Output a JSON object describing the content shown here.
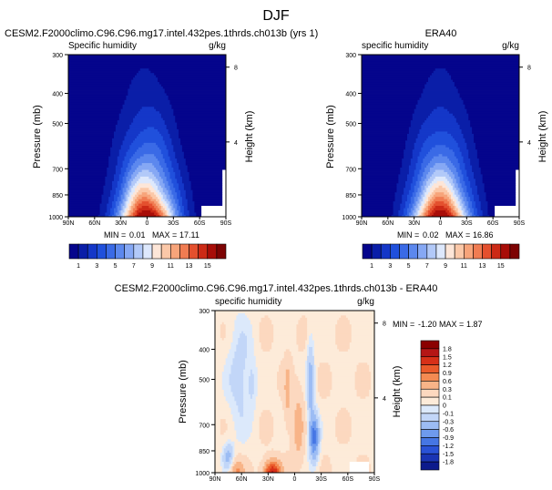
{
  "page_title": "DJF",
  "chart_data": [
    {
      "id": "model",
      "type": "heatmap",
      "title": "CESM2.F2000climo.C96.C96.mg17.intel.432pes.1thrds.ch013b (yrs 1)",
      "left_label": "Specific humidity",
      "units": "g/kg",
      "ylabel": "Pressure (mb)",
      "y2label": "Height (km)",
      "y_ticks": [
        "300",
        "400",
        "500",
        "700",
        "850",
        "1000"
      ],
      "y_tick_values": [
        300,
        400,
        500,
        700,
        850,
        1000
      ],
      "y2_ticks": [
        "8",
        "4"
      ],
      "y2_tick_values": [
        8,
        4
      ],
      "x_ticks": [
        "90N",
        "60N",
        "30N",
        "0",
        "30S",
        "60S",
        "90S"
      ],
      "x_tick_values": [
        90,
        60,
        30,
        0,
        -30,
        -60,
        -90
      ],
      "xlim": [
        90,
        -90
      ],
      "ylim": [
        1000,
        300
      ],
      "min_label": "MIN =",
      "min_value": "0.01",
      "max_label": "MAX =",
      "max_value": "17.11",
      "peak_value": 17.11,
      "colorbar_labels": [
        "1",
        "3",
        "5",
        "7",
        "9",
        "11",
        "13",
        "15"
      ],
      "colorbar_levels": [
        1,
        2,
        3,
        4,
        5,
        6,
        7,
        8,
        9,
        10,
        11,
        12,
        13,
        14,
        15
      ]
    },
    {
      "id": "obs",
      "type": "heatmap",
      "title": "ERA40",
      "left_label": "specific humidity",
      "units": "g/kg",
      "ylabel": "Pressure (mb)",
      "y2label": "Height (km)",
      "y_ticks": [
        "300",
        "400",
        "500",
        "700",
        "850",
        "1000"
      ],
      "y_tick_values": [
        300,
        400,
        500,
        700,
        850,
        1000
      ],
      "y2_ticks": [
        "8",
        "4"
      ],
      "y2_tick_values": [
        8,
        4
      ],
      "x_ticks": [
        "90N",
        "60N",
        "30N",
        "0",
        "30S",
        "60S",
        "90S"
      ],
      "x_tick_values": [
        90,
        60,
        30,
        0,
        -30,
        -60,
        -90
      ],
      "xlim": [
        90,
        -90
      ],
      "ylim": [
        1000,
        300
      ],
      "min_label": "MIN =",
      "min_value": "0.02",
      "max_label": "MAX =",
      "max_value": "16.86",
      "peak_value": 16.86,
      "colorbar_labels": [
        "1",
        "3",
        "5",
        "7",
        "9",
        "11",
        "13",
        "15"
      ],
      "colorbar_levels": [
        1,
        2,
        3,
        4,
        5,
        6,
        7,
        8,
        9,
        10,
        11,
        12,
        13,
        14,
        15
      ]
    },
    {
      "id": "diff",
      "type": "heatmap",
      "title": "CESM2.F2000climo.C96.C96.mg17.intel.432pes.1thrds.ch013b - ERA40",
      "left_label": "specific humidity",
      "units": "g/kg",
      "ylabel": "Pressure (mb)",
      "y2label": "Height (km)",
      "y_ticks": [
        "300",
        "400",
        "500",
        "700",
        "850",
        "1000"
      ],
      "y_tick_values": [
        300,
        400,
        500,
        700,
        850,
        1000
      ],
      "y2_ticks": [
        "8",
        "4"
      ],
      "y2_tick_values": [
        8,
        4
      ],
      "x_ticks": [
        "90N",
        "60N",
        "30N",
        "0",
        "30S",
        "60S",
        "90S"
      ],
      "x_tick_values": [
        90,
        60,
        30,
        0,
        -30,
        -60,
        -90
      ],
      "xlim": [
        90,
        -90
      ],
      "ylim": [
        1000,
        300
      ],
      "min_label": "MIN =",
      "min_value": "-1.20",
      "max_label": "MAX =",
      "max_value": "1.87",
      "colorbar_labels": [
        "1.8",
        "1.5",
        "1.2",
        "0.9",
        "0.6",
        "0.3",
        "0.1",
        "0",
        "-0.1",
        "-0.3",
        "-0.6",
        "-0.9",
        "-1.2",
        "-1.5",
        "-1.8"
      ]
    }
  ],
  "colors": {
    "background": "#ffffff",
    "missing": "#ffffff",
    "humidity_scale": [
      "#05058c",
      "#0a1ea8",
      "#1437c8",
      "#2050dc",
      "#3a6ae6",
      "#5c88ee",
      "#86a8f4",
      "#b2c9f8",
      "#dde8fc",
      "#fde6d8",
      "#fbc8a8",
      "#f7a47a",
      "#f07c52",
      "#e4502e",
      "#cc2a16",
      "#a80d08",
      "#7d0303"
    ],
    "difference_scale": [
      "#8b0000",
      "#b51616",
      "#d73018",
      "#ea5a2a",
      "#f48a52",
      "#f8b488",
      "#fcd8bf",
      "#fdebd9",
      "#dce9fb",
      "#c2d6f8",
      "#9cbcf4",
      "#6e9aee",
      "#4676e4",
      "#2a52d6",
      "#1a34b4",
      "#0c1a8c"
    ]
  }
}
